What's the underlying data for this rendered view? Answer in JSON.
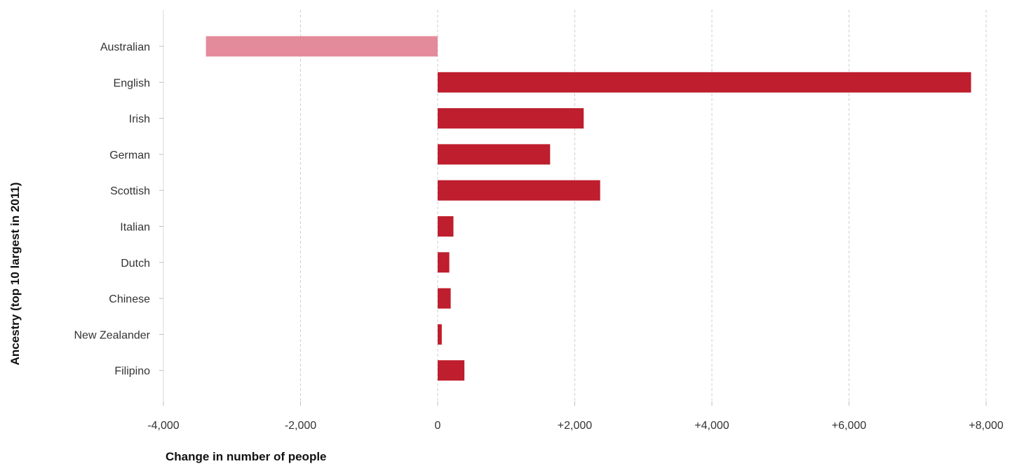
{
  "chart_data": {
    "type": "bar",
    "orientation": "horizontal",
    "categories": [
      "Australian",
      "English",
      "Irish",
      "German",
      "Scottish",
      "Italian",
      "Dutch",
      "Chinese",
      "New Zealander",
      "Filipino"
    ],
    "values": [
      -3380,
      7780,
      2130,
      1640,
      2370,
      230,
      170,
      190,
      60,
      390
    ],
    "xlabel": "Change in number of people",
    "ylabel": "Ancestry (top 10 largest in 2011)",
    "xlim": [
      -4000,
      8000
    ],
    "xticks": [
      -4000,
      -2000,
      0,
      2000,
      4000,
      6000,
      8000
    ],
    "xtick_labels": [
      "-4,000",
      "-2,000",
      "0",
      "+2,000",
      "+4,000",
      "+6,000",
      "+8,000"
    ],
    "grid": true,
    "colors": {
      "positive": "#be1e2d",
      "negative": "#e48b9b"
    }
  }
}
